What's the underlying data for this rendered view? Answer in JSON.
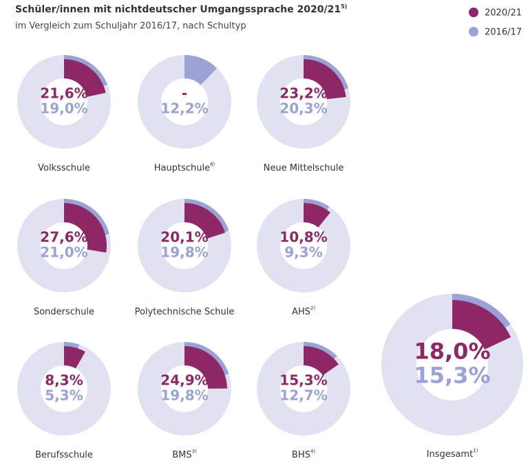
{
  "chart_data": {
    "type": "donut",
    "title": "Schüler/innen mit nichtdeutscher Umgangssprache 2020/21",
    "title_note": "5)",
    "subtitle": "im Vergleich zum Schuljahr 2016/17, nach Schultyp",
    "categories": [
      "Volksschule",
      "Hauptschule",
      "Neue Mittelschule",
      "Sonderschule",
      "Polytechnische Schule",
      "AHS",
      "Berufsschule",
      "BMS",
      "BHS",
      "Insgesamt"
    ],
    "category_notes": [
      null,
      "6)",
      null,
      null,
      null,
      "2)",
      null,
      "3)",
      "4)",
      "1)"
    ],
    "series": [
      {
        "name": "2020/21",
        "color": "#8e2766",
        "values": [
          21.6,
          null,
          23.2,
          27.6,
          20.1,
          10.8,
          8.3,
          24.9,
          15.3,
          18
        ],
        "value_labels": [
          "21,6%",
          "-",
          "23,2%",
          "27,6%",
          "20,1%",
          "10,8%",
          "8,3%",
          "24,9%",
          "15,3%",
          "18,0%"
        ]
      },
      {
        "name": "2016/17",
        "color": "#9aa2d6",
        "values": [
          19,
          12.2,
          20.3,
          21,
          19.8,
          9.3,
          5.3,
          19.8,
          12.7,
          15.3
        ],
        "value_labels": [
          "19,0%",
          "12,2%",
          "20,3%",
          "21,0%",
          "19,8%",
          "9,3%",
          "5,3%",
          "19,8%",
          "12,7%",
          "15,3%"
        ]
      }
    ],
    "background_color": "#e1e2f1"
  }
}
